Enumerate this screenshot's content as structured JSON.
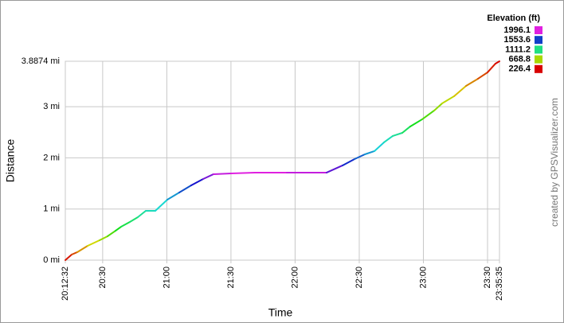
{
  "chart_data": {
    "type": "line",
    "x_label": "Time",
    "y_label": "Distance",
    "credit": "created by GPSVisualizer.com",
    "xlim": [
      1212.533,
      1415.583
    ],
    "ylim": [
      0,
      3.8874
    ],
    "xticks": [
      {
        "value": 1212.533,
        "label": "20:12:32"
      },
      {
        "value": 1230,
        "label": "20:30"
      },
      {
        "value": 1260,
        "label": "21:00"
      },
      {
        "value": 1290,
        "label": "21:30"
      },
      {
        "value": 1320,
        "label": "22:00"
      },
      {
        "value": 1350,
        "label": "22:30"
      },
      {
        "value": 1380,
        "label": "23:00"
      },
      {
        "value": 1410,
        "label": "23:30"
      },
      {
        "value": 1415.583,
        "label": "23:35:35"
      }
    ],
    "yticks": [
      {
        "value": 0,
        "label": "0 mi"
      },
      {
        "value": 1,
        "label": "1 mi"
      },
      {
        "value": 2,
        "label": "2 mi"
      },
      {
        "value": 3,
        "label": "3 mi"
      },
      {
        "value": 3.8874,
        "label": "3.8874 mi"
      }
    ],
    "grid": true,
    "x": [
      1212.53,
      1215.51,
      1218.12,
      1222.97,
      1228.55,
      1232.28,
      1236.01,
      1238.61,
      1242.71,
      1246.44,
      1250.16,
      1254.63,
      1260.22,
      1265.81,
      1271.4,
      1276.99,
      1281.83,
      1290.03,
      1301.21,
      1316.11,
      1334.74,
      1342.19,
      1347.78,
      1352.62,
      1357.09,
      1361.56,
      1365.66,
      1370.13,
      1373.86,
      1379.45,
      1385.04,
      1388.76,
      1394.35,
      1399.94,
      1405.53,
      1410.0,
      1413.72,
      1415.58
    ],
    "values": [
      0,
      0.109,
      0.156,
      0.28,
      0.389,
      0.467,
      0.575,
      0.653,
      0.747,
      0.84,
      0.964,
      0.964,
      1.182,
      1.322,
      1.462,
      1.586,
      1.68,
      1.695,
      1.711,
      1.711,
      1.711,
      1.851,
      1.975,
      2.068,
      2.131,
      2.302,
      2.426,
      2.488,
      2.613,
      2.753,
      2.924,
      3.064,
      3.204,
      3.406,
      3.546,
      3.67,
      3.841,
      3.8874
    ],
    "elevation": [
      226.4,
      300,
      400,
      550,
      650,
      750,
      900,
      1000,
      1050,
      1111,
      1200,
      1250,
      1300,
      1500,
      1553,
      1750,
      1900,
      1996,
      1996,
      1996,
      1900,
      1650,
      1553,
      1450,
      1350,
      1250,
      1200,
      1111,
      1000,
      900,
      750,
      668,
      600,
      500,
      400,
      300,
      250,
      226.4
    ],
    "color_scale": {
      "title": "Elevation (ft)",
      "stops": [
        {
          "value": 1996.1,
          "color": "#e020e0"
        },
        {
          "value": 1553.6,
          "color": "#1040c8"
        },
        {
          "value": 1111.2,
          "color": "#20e080"
        },
        {
          "value": 668.8,
          "color": "#a8d800"
        },
        {
          "value": 226.4,
          "color": "#d80000"
        }
      ]
    }
  }
}
